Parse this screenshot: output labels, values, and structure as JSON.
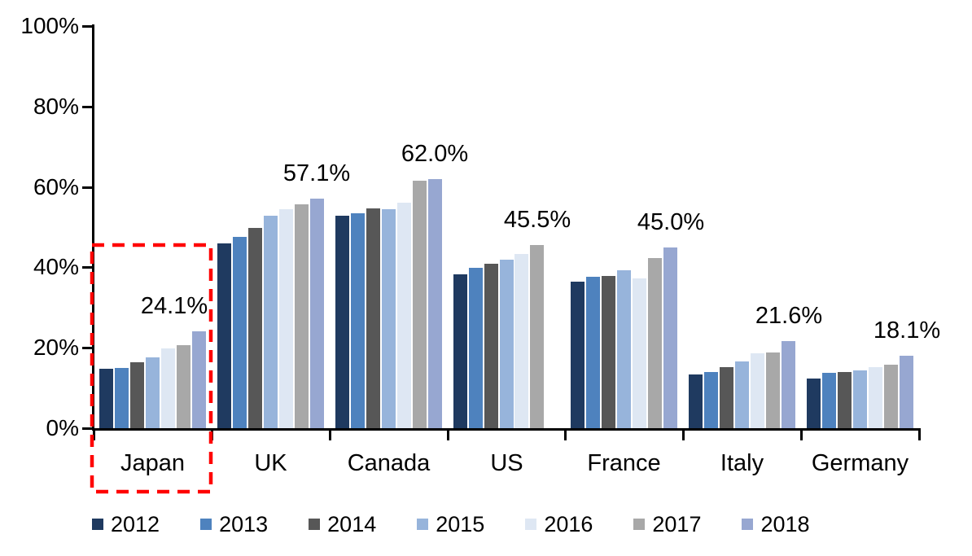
{
  "chart_data": {
    "type": "bar",
    "title": "",
    "xlabel": "",
    "ylabel": "",
    "unit": "%",
    "grid": false,
    "legend_position": "bottom",
    "y_axis": {
      "min": 0,
      "max": 100,
      "tick_values": [
        0,
        20,
        40,
        60,
        80,
        100
      ],
      "tick_labels": [
        "0%",
        "20%",
        "40%",
        "60%",
        "80%",
        "100%"
      ]
    },
    "categories": [
      "Japan",
      "UK",
      "Canada",
      "US",
      "France",
      "Italy",
      "Germany"
    ],
    "series": [
      {
        "name": "2012",
        "color": "#1F3A60",
        "values": [
          14.8,
          46.0,
          52.9,
          38.2,
          36.4,
          13.3,
          12.3
        ]
      },
      {
        "name": "2013",
        "color": "#4E82BE",
        "values": [
          15.0,
          47.6,
          53.4,
          39.9,
          37.7,
          14.0,
          13.7
        ]
      },
      {
        "name": "2014",
        "color": "#575757",
        "values": [
          16.3,
          49.7,
          54.7,
          40.8,
          37.8,
          15.1,
          14.0
        ]
      },
      {
        "name": "2015",
        "color": "#97B4DB",
        "values": [
          17.6,
          52.9,
          54.5,
          41.9,
          39.3,
          16.6,
          14.4
        ]
      },
      {
        "name": "2016",
        "color": "#DEE7F3",
        "values": [
          19.8,
          54.4,
          56.0,
          43.4,
          37.3,
          18.7,
          15.1
        ]
      },
      {
        "name": "2017",
        "color": "#A8A8A8",
        "values": [
          20.7,
          55.6,
          61.5,
          45.5,
          42.3,
          18.9,
          15.7
        ]
      },
      {
        "name": "2018",
        "color": "#97A7D1",
        "values": [
          24.1,
          57.1,
          62.0,
          null,
          45.0,
          21.6,
          18.1
        ]
      }
    ],
    "annotations": [
      {
        "category": "Japan",
        "text": "24.1%",
        "dx": -30
      },
      {
        "category": "UK",
        "text": "57.1%",
        "dx": 0
      },
      {
        "category": "Canada",
        "text": "62.0%",
        "dx": 0
      },
      {
        "category": "US",
        "text": "45.5%",
        "dx": 0
      },
      {
        "category": "France",
        "text": "45.0%",
        "dx": 0
      },
      {
        "category": "Italy",
        "text": "21.6%",
        "dx": 0
      },
      {
        "category": "Germany",
        "text": "18.1%",
        "dx": 0
      }
    ],
    "highlight_box": {
      "category": "Japan",
      "color": "#FF0000",
      "style": "dashed",
      "includes_label": true
    },
    "legend": [
      "2012",
      "2013",
      "2014",
      "2015",
      "2016",
      "2017",
      "2018"
    ]
  }
}
